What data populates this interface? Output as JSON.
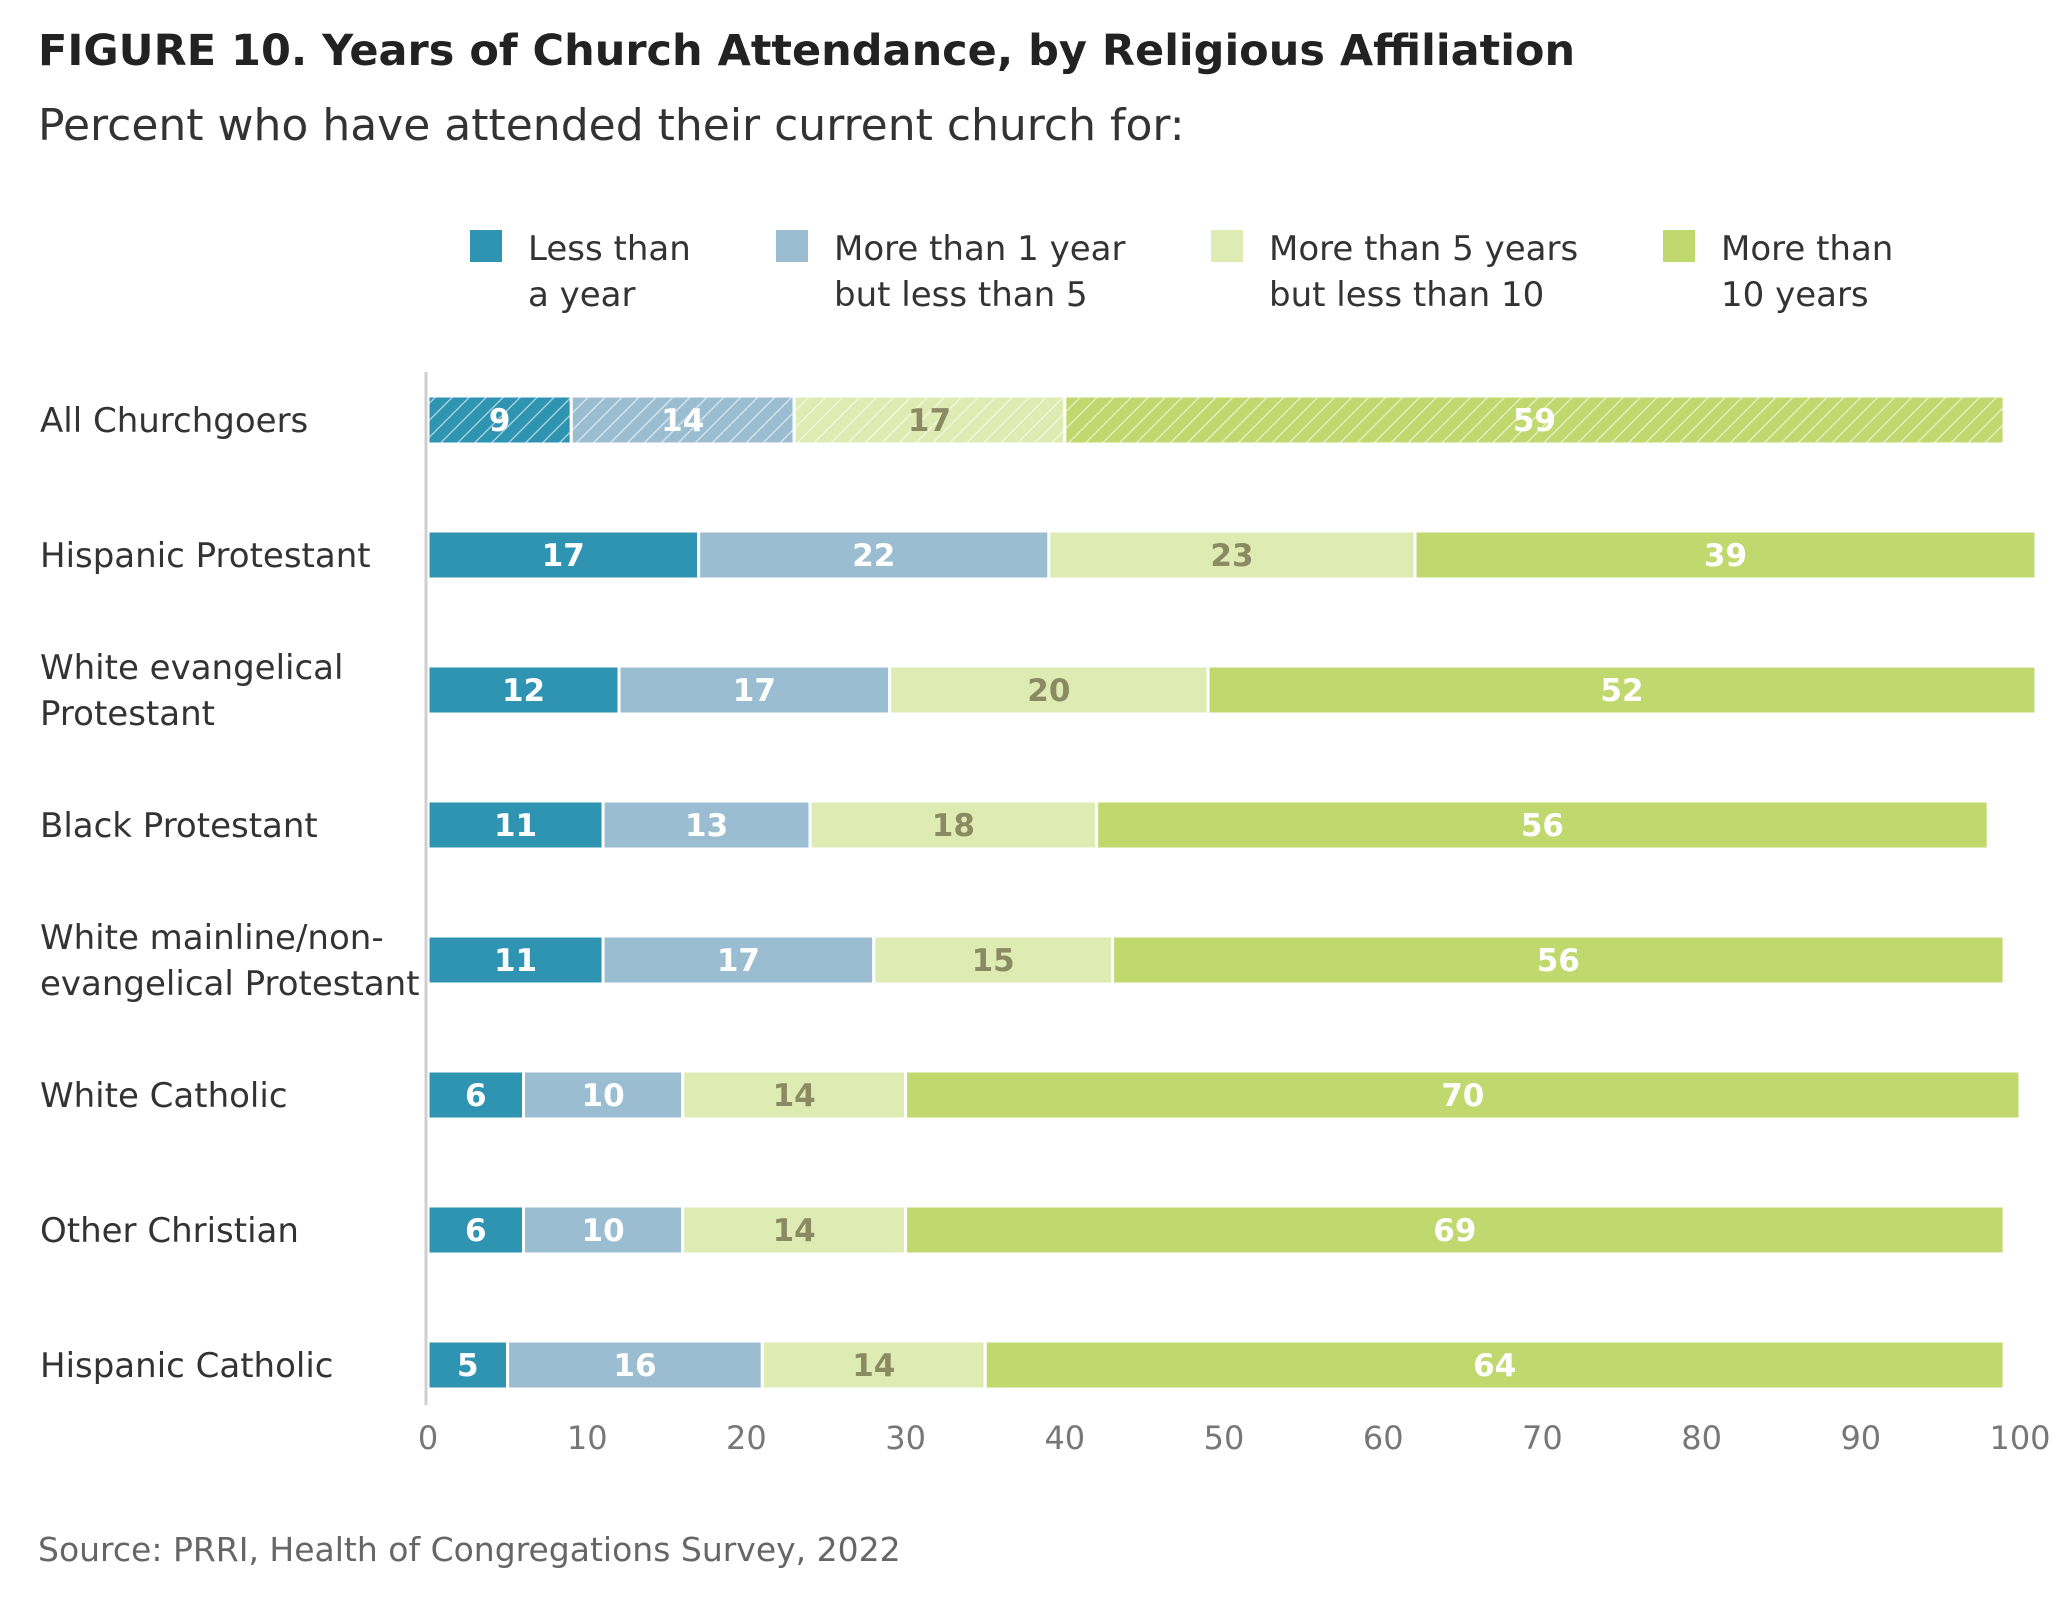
{
  "chart_data": {
    "type": "bar",
    "orientation": "horizontal",
    "stacked": true,
    "title": "FIGURE 10.  Years of Church Attendance, by Religious Affiliation",
    "subtitle": "Percent who have attended their current church for:",
    "source": "Source: PRRI, Health of Congregations Survey, 2022",
    "xlim": [
      0,
      100
    ],
    "x_ticks": [
      0,
      10,
      20,
      30,
      40,
      50,
      60,
      70,
      80,
      90,
      100
    ],
    "grid": false,
    "legend_position": "top",
    "categories": [
      [
        "All Churchgoers"
      ],
      [
        "Hispanic Protestant"
      ],
      [
        "White evangelical",
        "Protestant"
      ],
      [
        "Black Protestant"
      ],
      [
        "White mainline/non-",
        "evangelical Protestant"
      ],
      [
        "White Catholic"
      ],
      [
        "Other Christian"
      ],
      [
        "Hispanic Catholic"
      ]
    ],
    "hatched_category_index": 0,
    "series": [
      {
        "name": [
          "Less than",
          "a year"
        ],
        "color": "#2f93b2",
        "label_color": "#ffffff",
        "values": [
          9,
          17,
          12,
          11,
          11,
          6,
          6,
          5
        ]
      },
      {
        "name": [
          "More than 1 year",
          "but less than 5"
        ],
        "color": "#9bbdd1",
        "label_color": "#ffffff",
        "values": [
          14,
          22,
          17,
          13,
          17,
          10,
          10,
          16
        ]
      },
      {
        "name": [
          "More than 5 years",
          "but less than 10"
        ],
        "color": "#deebb2",
        "label_color": "#8a8a63",
        "values": [
          17,
          23,
          20,
          18,
          15,
          14,
          14,
          14
        ]
      },
      {
        "name": [
          "More than",
          "10 years"
        ],
        "color": "#c0d86d",
        "label_color": "#ffffff",
        "values": [
          59,
          39,
          52,
          56,
          56,
          70,
          69,
          64
        ]
      }
    ]
  }
}
